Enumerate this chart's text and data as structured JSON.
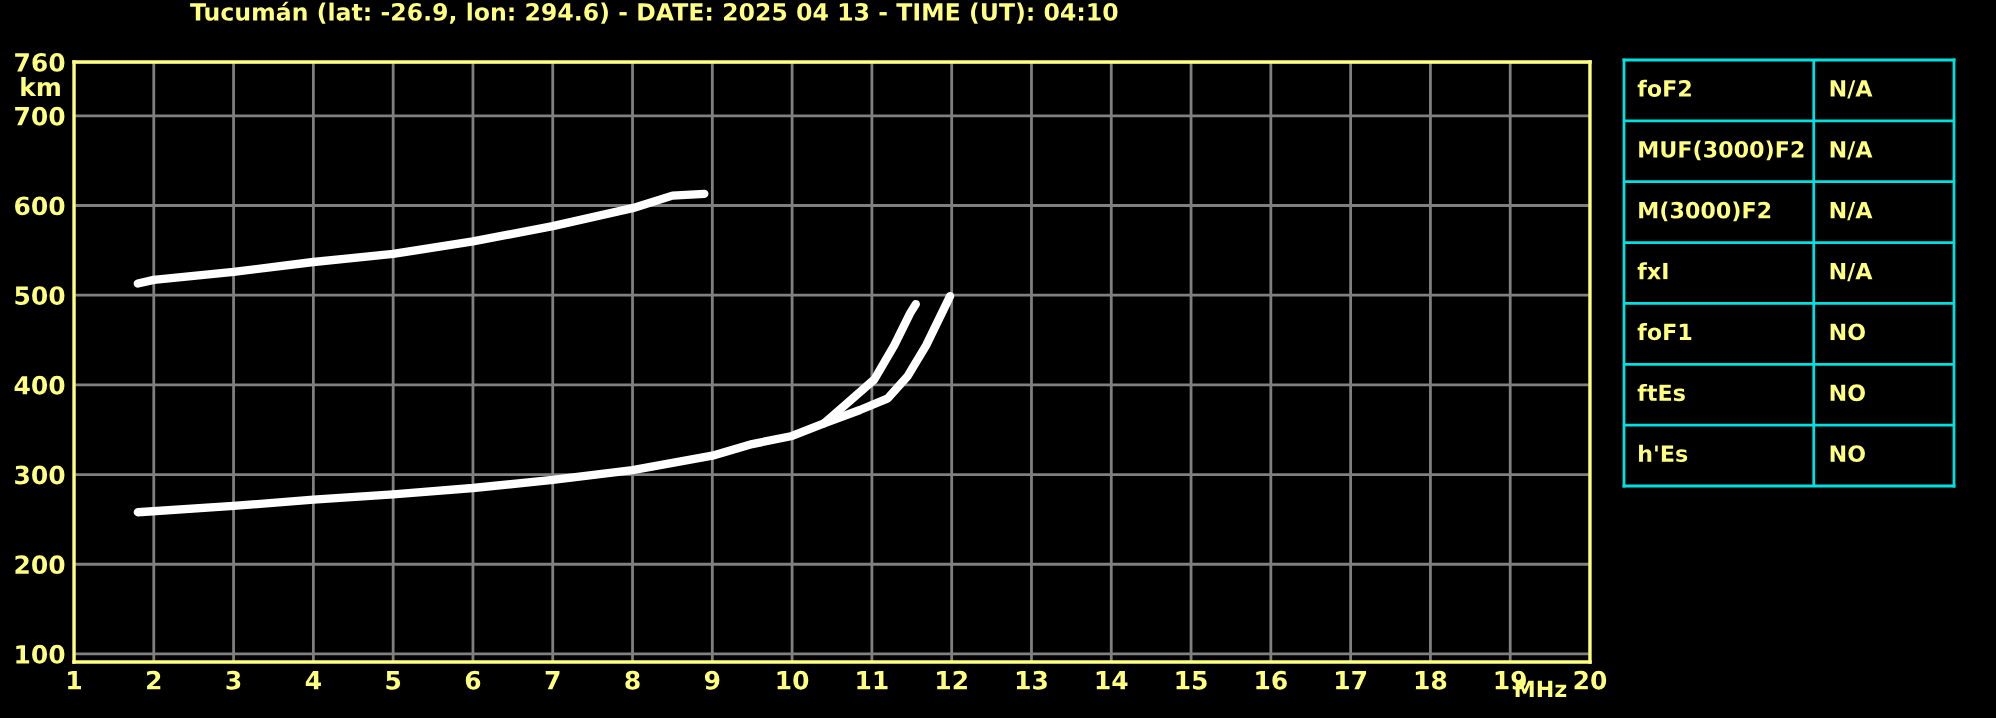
{
  "chart_data": [
    {
      "type": "line",
      "title": "Tucumán (lat: -26.9, lon: 294.6) - DATE: 2025 04 13 - TIME (UT): 04:10",
      "xlabel": "MHz",
      "ylabel": "km",
      "xlim": [
        1,
        20
      ],
      "xticks": [
        1,
        2,
        3,
        4,
        5,
        6,
        7,
        8,
        9,
        10,
        11,
        12,
        13,
        14,
        15,
        16,
        17,
        18,
        19,
        20
      ],
      "ylim": [
        91,
        760
      ],
      "yticks": [
        100,
        200,
        300,
        400,
        500,
        600,
        700,
        760
      ],
      "grid": true,
      "legend": false,
      "marker": "none",
      "line_style": "solid",
      "series": [
        {
          "color": "#ffffff",
          "x": [
            1.8,
            3,
            4,
            5,
            6,
            7,
            8,
            9,
            9.5,
            10,
            10.4,
            10.85,
            11.2,
            11.45,
            11.68,
            11.98
          ],
          "values": [
            258,
            265,
            272,
            278,
            285,
            294,
            305,
            321,
            334,
            343,
            357,
            372,
            385,
            410,
            444,
            499
          ]
        },
        {
          "color": "#ffffff",
          "x": [
            10.4,
            10.67,
            11.03,
            11.28,
            11.48,
            11.55
          ],
          "values": [
            357,
            378,
            406,
            444,
            480,
            490
          ]
        },
        {
          "color": "#ffffff",
          "x": [
            1.8,
            2,
            3,
            4,
            5,
            6,
            7,
            8,
            8.5,
            8.9
          ],
          "values": [
            513,
            517,
            526,
            537,
            546,
            560,
            577,
            597,
            611,
            613
          ]
        }
      ]
    },
    {
      "type": "other",
      "annotations": [
        "foF2",
        "N/A",
        "MUF(3000)F2",
        "N/A",
        "M(3000)F2",
        "N/A",
        "fxI",
        "N/A",
        "foF1",
        "NO",
        "ftEs",
        "NO",
        "h'Es",
        "NO"
      ]
    }
  ]
}
